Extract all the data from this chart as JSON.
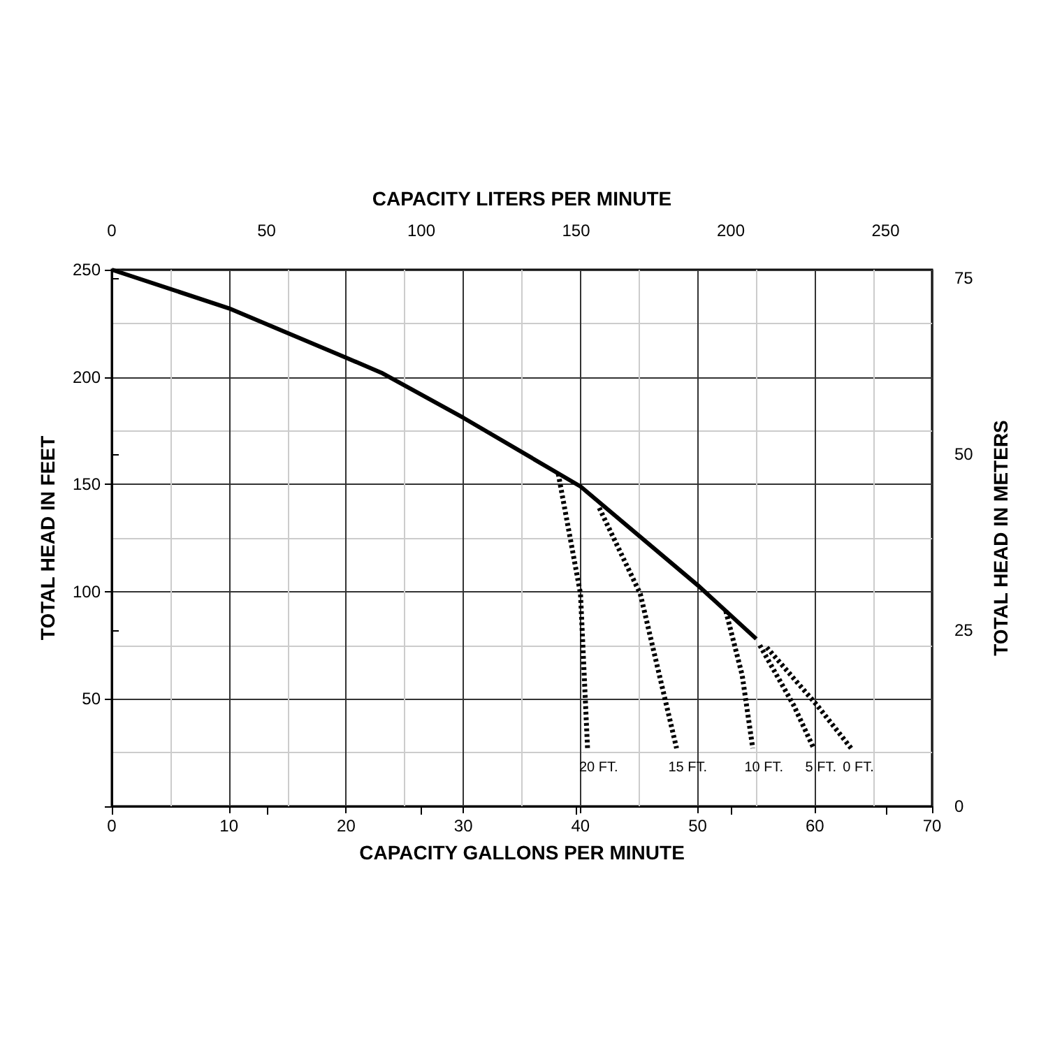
{
  "chart_data": {
    "type": "line",
    "xlabel": "CAPACITY GALLONS PER MINUTE",
    "ylabel": "TOTAL HEAD IN FEET",
    "x2label": "CAPACITY LITERS PER MINUTE",
    "y2label": "TOTAL HEAD IN METERS",
    "xlim": [
      0,
      70
    ],
    "xticks": [
      0,
      10,
      20,
      30,
      40,
      50,
      60,
      70
    ],
    "ylim": [
      0,
      250
    ],
    "yticks": [
      {
        "value": 0,
        "label": null
      },
      50,
      100,
      150,
      200,
      250
    ],
    "x2lim": [
      0,
      265
    ],
    "x2ticks": [
      0,
      50,
      100,
      150,
      200,
      250
    ],
    "y2lim": [
      0,
      76.2
    ],
    "y2ticks": [
      0,
      25,
      50,
      75
    ],
    "grid": true,
    "marker": "none",
    "series": [
      {
        "color": "#000000",
        "line_style": "solid",
        "x": [
          0,
          10,
          20,
          23,
          30,
          40,
          50,
          55
        ],
        "values": [
          250,
          232,
          209,
          202,
          181,
          149,
          103,
          78
        ]
      },
      {
        "name": "20 FT.",
        "color": "#000000",
        "line_style": "dotted",
        "x": [
          38.1,
          40,
          40.6
        ],
        "values": [
          155,
          99,
          27
        ]
      },
      {
        "name": "15 FT.",
        "color": "#000000",
        "line_style": "dotted",
        "x": [
          41.6,
          45.1,
          48.2
        ],
        "values": [
          139,
          99,
          27
        ]
      },
      {
        "name": "10 FT.",
        "color": "#000000",
        "line_style": "dotted",
        "x": [
          52.4,
          53.8,
          54.7
        ],
        "values": [
          91,
          61,
          27
        ]
      },
      {
        "name": "5 FT.",
        "color": "#000000",
        "line_style": "dotted",
        "x": [
          55.3,
          58.2,
          59.9
        ],
        "values": [
          75,
          47,
          27
        ]
      },
      {
        "name": "0 FT.",
        "color": "#000000",
        "line_style": "dotted",
        "x": [
          55.9,
          60.2,
          63.1
        ],
        "values": [
          74,
          47,
          27
        ]
      }
    ]
  }
}
